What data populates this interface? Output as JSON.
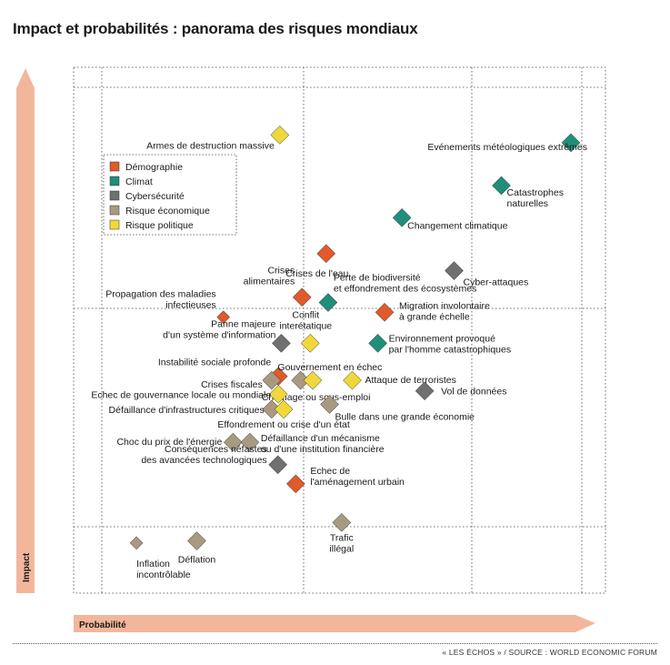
{
  "chart_data": {
    "type": "scatter",
    "title": "Impact et probabilités : panorama des risques mondiaux",
    "xlabel": "Probabilité",
    "ylabel": "Impact",
    "grid": true,
    "legend_placement": "top-left",
    "source": "« LES ÉCHOS » / SOURCE : WORLD ECONOMIC FORUM",
    "categories": [
      {
        "key": "demo",
        "name": "Démographie",
        "color": "#e05a2b"
      },
      {
        "key": "climat",
        "name": "Climat",
        "color": "#1f8f7a"
      },
      {
        "key": "cyber",
        "name": "Cybersécurité",
        "color": "#707070"
      },
      {
        "key": "eco",
        "name": "Risque économique",
        "color": "#a89a80"
      },
      {
        "key": "pol",
        "name": "Risque politique",
        "color": "#f0d83a"
      }
    ],
    "points": [
      {
        "label": [
          "Armes de destruction massive"
        ],
        "cat": "pol",
        "x": 0.397,
        "y": 0.921
      },
      {
        "label": [
          "Evénements météologiques extrêmes"
        ],
        "cat": "climat",
        "x": 1.0,
        "y": 0.902
      },
      {
        "label": [
          "Catastrophes",
          "naturelles"
        ],
        "cat": "climat",
        "x": 0.856,
        "y": 0.797
      },
      {
        "label": [
          "Changement climatique"
        ],
        "cat": "climat",
        "x": 0.65,
        "y": 0.718
      },
      {
        "label": [
          "Crises de l'eau"
        ],
        "cat": "demo",
        "x": 0.493,
        "y": 0.63
      },
      {
        "label": [
          "Cyber-attaques"
        ],
        "cat": "cyber",
        "x": 0.758,
        "y": 0.588
      },
      {
        "label": [
          "Crises",
          "alimentaires"
        ],
        "cat": "demo",
        "x": 0.443,
        "y": 0.523
      },
      {
        "label": [
          "Perte de biodiversité",
          "et effondrement des écosystèmes"
        ],
        "cat": "climat",
        "x": 0.497,
        "y": 0.51
      },
      {
        "label": [
          "Propagation des maladies",
          "infectieuses"
        ],
        "cat": "demo",
        "x": 0.28,
        "y": 0.474
      },
      {
        "label": [
          "Migration involontaire",
          "à grande échelle"
        ],
        "cat": "demo",
        "x": 0.614,
        "y": 0.486
      },
      {
        "label": [
          "Conflit",
          "interétatique"
        ],
        "cat": "pol",
        "x": 0.46,
        "y": 0.41
      },
      {
        "label": [
          "Panne majeure",
          "d'un système d'information"
        ],
        "cat": "cyber",
        "x": 0.4,
        "y": 0.41
      },
      {
        "label": [
          "Environnement provoqué",
          "par l'homme catastrophiques"
        ],
        "cat": "climat",
        "x": 0.6,
        "y": 0.41
      },
      {
        "label": [
          "Instabilité sociale profonde"
        ],
        "cat": "demo",
        "x": 0.394,
        "y": 0.329
      },
      {
        "label": [
          "Crises fiscales"
        ],
        "cat": "eco",
        "x": 0.38,
        "y": 0.319
      },
      {
        "label": [
          "Chômage ou sous-emploi"
        ],
        "cat": "eco",
        "x": 0.44,
        "y": 0.319
      },
      {
        "label": [
          "Gouvernement en échec"
        ],
        "cat": "pol",
        "x": 0.465,
        "y": 0.319
      },
      {
        "label": [
          "Attaque de terroristes"
        ],
        "cat": "pol",
        "x": 0.547,
        "y": 0.319
      },
      {
        "label": [
          "Vol de données"
        ],
        "cat": "cyber",
        "x": 0.697,
        "y": 0.293
      },
      {
        "label": [
          "Echec de gouvernance locale ou mondiale"
        ],
        "cat": "pol",
        "x": 0.394,
        "y": 0.285
      },
      {
        "label": [
          "Bulle dans une grande économie"
        ],
        "cat": "eco",
        "x": 0.5,
        "y": 0.26
      },
      {
        "label": [
          "Défaillance d'infrastructures critiques"
        ],
        "cat": "eco",
        "x": 0.38,
        "y": 0.248
      },
      {
        "label": [
          "Effondrement ou crise d'un état"
        ],
        "cat": "pol",
        "x": 0.405,
        "y": 0.248
      },
      {
        "label": [
          "Choc du prix de l'énergie"
        ],
        "cat": "eco",
        "x": 0.3,
        "y": 0.167
      },
      {
        "label": [
          "Défaillance d'un mécanisme",
          "ou d'une institution financière"
        ],
        "cat": "eco",
        "x": 0.335,
        "y": 0.167
      },
      {
        "label": [
          "Conséquences néfastes",
          "des avancées technologiques"
        ],
        "cat": "cyber",
        "x": 0.393,
        "y": 0.112
      },
      {
        "label": [
          "Echec de",
          "l'aménagement urbain"
        ],
        "cat": "demo",
        "x": 0.43,
        "y": 0.065
      },
      {
        "label": [
          "Trafic",
          "illégal"
        ],
        "cat": "eco",
        "x": 0.525,
        "y": -0.03
      },
      {
        "label": [
          "Inflation",
          "incontrôlable"
        ],
        "cat": "eco",
        "x": 0.1,
        "y": -0.08
      },
      {
        "label": [
          "Déflation"
        ],
        "cat": "eco",
        "x": 0.225,
        "y": -0.075
      }
    ]
  }
}
